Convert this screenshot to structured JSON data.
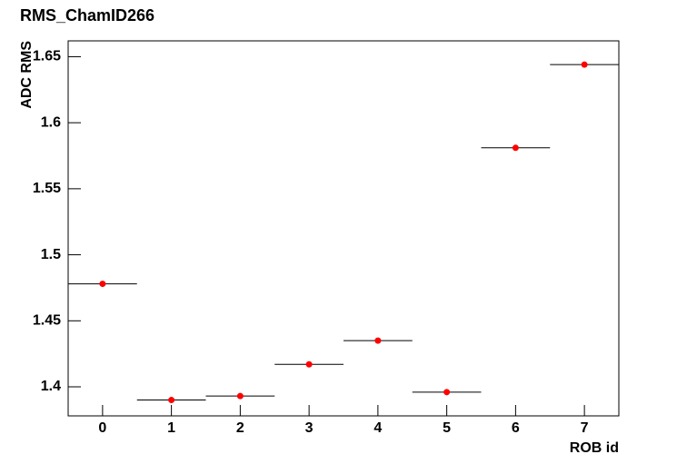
{
  "chart_data": {
    "type": "scatter",
    "title": "RMS_ChamID266",
    "x_label": "ROB id",
    "y_label": "ADC RMS",
    "x": [
      0,
      1,
      2,
      3,
      4,
      5,
      6,
      7
    ],
    "xerr": [
      0.5,
      0.5,
      0.5,
      0.5,
      0.5,
      0.5,
      0.5,
      0.5
    ],
    "values": [
      1.478,
      1.39,
      1.393,
      1.417,
      1.435,
      1.396,
      1.581,
      1.644
    ],
    "color": "#ff0000",
    "xlim": [
      -0.5,
      7.5
    ],
    "xticks": [
      0,
      1,
      2,
      3,
      4,
      5,
      6,
      7
    ],
    "ylim": [
      1.378,
      1.662
    ],
    "yticks": [
      1.4,
      1.45,
      1.5,
      1.55,
      1.6,
      1.65
    ]
  }
}
